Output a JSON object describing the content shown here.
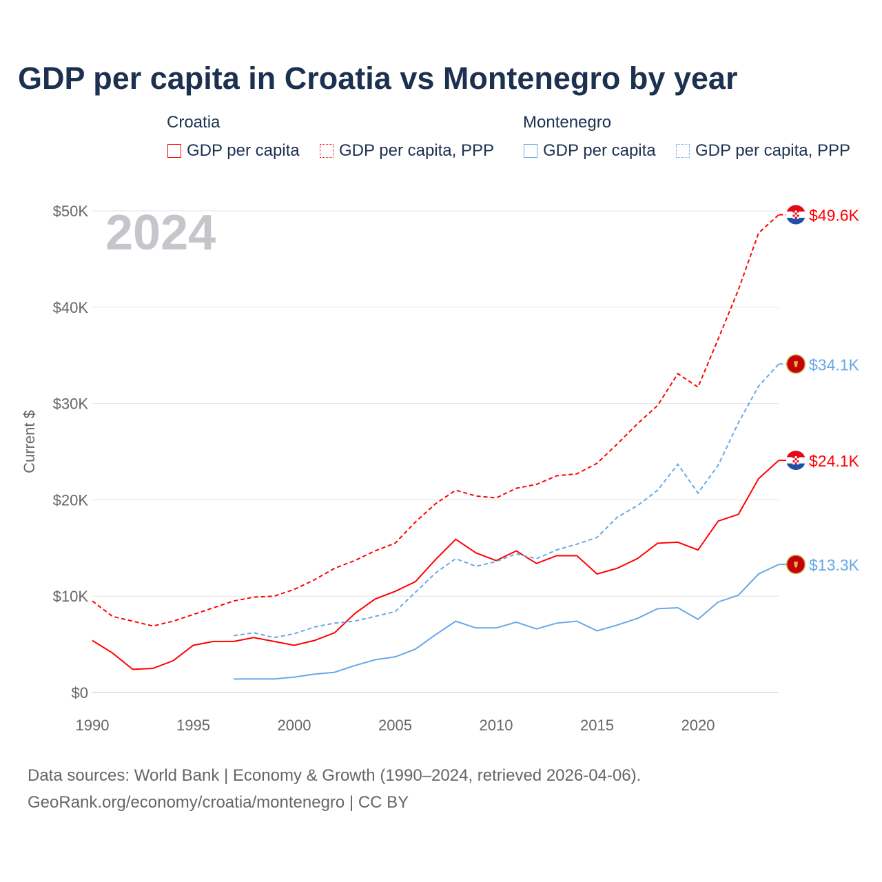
{
  "chart_data": {
    "type": "line",
    "title": "GDP per capita in Croatia vs Montenegro by year",
    "ylabel": "Current $",
    "xlabel": "",
    "year_watermark": "2024",
    "xlim": [
      1990,
      2024
    ],
    "ylim": [
      0,
      50000
    ],
    "x_ticks": [
      "1990",
      "1995",
      "2000",
      "2005",
      "2010",
      "2015",
      "2020"
    ],
    "y_ticks": [
      "$0",
      "$10K",
      "$20K",
      "$30K",
      "$40K",
      "$50K"
    ],
    "grid": true,
    "legend_groups": [
      {
        "country": "Croatia",
        "items": [
          "GDP per capita",
          "GDP per capita, PPP"
        ]
      },
      {
        "country": "Montenegro",
        "items": [
          "GDP per capita",
          "GDP per capita, PPP"
        ]
      }
    ],
    "series": [
      {
        "name": "Croatia GDP per capita",
        "color": "#ff0000",
        "dash": false,
        "flag": "croatia",
        "end_label": "$24.1K",
        "start": 1990,
        "values": [
          5.4,
          4.1,
          2.4,
          2.5,
          3.3,
          4.9,
          5.3,
          5.3,
          5.7,
          5.3,
          4.9,
          5.4,
          6.2,
          8.2,
          9.7,
          10.5,
          11.5,
          13.8,
          15.9,
          14.5,
          13.7,
          14.7,
          13.4,
          14.2,
          14.2,
          12.3,
          12.9,
          13.9,
          15.5,
          15.6,
          14.8,
          17.8,
          18.5,
          22.2,
          24.1
        ]
      },
      {
        "name": "Croatia GDP per capita, PPP",
        "color": "#ff0000",
        "dash": true,
        "flag": "croatia",
        "end_label": "$49.6K",
        "start": 1990,
        "values": [
          9.5,
          7.9,
          7.4,
          6.9,
          7.4,
          8.1,
          8.8,
          9.5,
          9.9,
          10.0,
          10.7,
          11.7,
          12.9,
          13.7,
          14.7,
          15.5,
          17.7,
          19.6,
          21.0,
          20.4,
          20.2,
          21.2,
          21.6,
          22.5,
          22.7,
          23.8,
          25.8,
          27.9,
          29.8,
          33.1,
          31.7,
          36.7,
          41.8,
          47.7,
          49.6
        ]
      },
      {
        "name": "Montenegro GDP per capita",
        "color": "#66a8e8",
        "dash": false,
        "flag": "montenegro",
        "end_label": "$13.3K",
        "start": 1997,
        "values": [
          1.4,
          1.4,
          1.4,
          1.6,
          1.9,
          2.1,
          2.8,
          3.4,
          3.7,
          4.5,
          6.0,
          7.4,
          6.7,
          6.7,
          7.3,
          6.6,
          7.2,
          7.4,
          6.4,
          7.0,
          7.7,
          8.7,
          8.8,
          7.6,
          9.4,
          10.1,
          12.3,
          13.3
        ]
      },
      {
        "name": "Montenegro GDP per capita, PPP",
        "color": "#66a8e8",
        "dash": true,
        "flag": "montenegro",
        "end_label": "$34.1K",
        "start": 1997,
        "values": [
          5.9,
          6.2,
          5.7,
          6.1,
          6.8,
          7.2,
          7.4,
          7.9,
          8.4,
          10.4,
          12.4,
          13.9,
          13.1,
          13.6,
          14.4,
          13.9,
          14.8,
          15.4,
          16.1,
          18.2,
          19.4,
          21.0,
          23.7,
          20.7,
          23.6,
          28.0,
          31.8,
          34.1
        ]
      }
    ],
    "value_unit": "thousand USD"
  },
  "footer": {
    "line1": "Data sources: World Bank | Economy & Growth (1990–2024, retrieved 2026-04-06).",
    "line2": "GeoRank.org/economy/croatia/montenegro | CC BY"
  }
}
